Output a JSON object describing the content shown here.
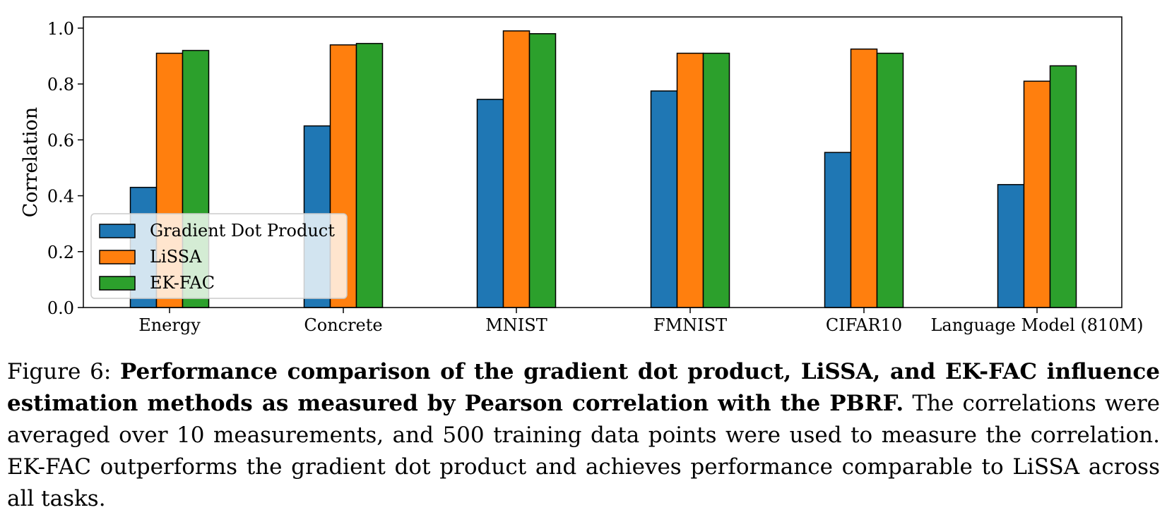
{
  "chart_data": {
    "type": "bar",
    "ylabel": "Correlation",
    "xlabel": "",
    "ylim": [
      0,
      1.04
    ],
    "yticks": [
      "0.0",
      "0.2",
      "0.4",
      "0.6",
      "0.8",
      "1.0"
    ],
    "grid": false,
    "legend_position": "lower-left",
    "categories": [
      "Energy",
      "Concrete",
      "MNIST",
      "FMNIST",
      "CIFAR10",
      "Language Model (810M)"
    ],
    "series": [
      {
        "name": "Gradient Dot Product",
        "color": "#1f77b4",
        "values": [
          0.43,
          0.65,
          0.745,
          0.775,
          0.555,
          0.44
        ]
      },
      {
        "name": "LiSSA",
        "color": "#ff7f0e",
        "values": [
          0.91,
          0.94,
          0.99,
          0.91,
          0.925,
          0.81
        ]
      },
      {
        "name": "EK-FAC",
        "color": "#2ca02c",
        "values": [
          0.92,
          0.945,
          0.98,
          0.91,
          0.91,
          0.865
        ]
      }
    ]
  },
  "caption": {
    "figure_label": "Figure 6:",
    "bold_text": "Performance comparison of the gradient dot product, LiSSA, and EK-FAC influence estimation methods as measured by Pearson correlation with the PBRF.",
    "body_text": "The correlations were averaged over 10 measurements, and 500 training data points were used to measure the correlation. EK-FAC outperforms the gradient dot product and achieves performance comparable to LiSSA across all tasks."
  }
}
